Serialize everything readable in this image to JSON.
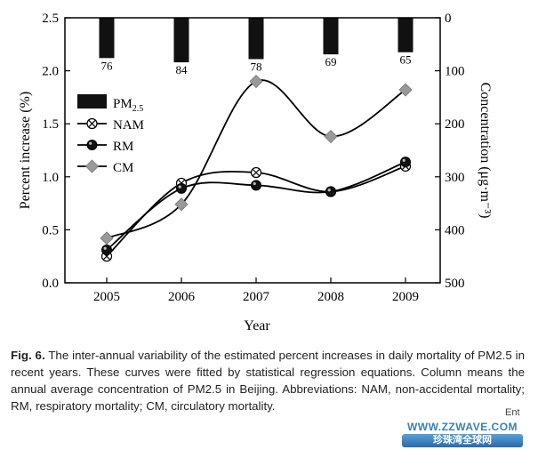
{
  "chart_data": {
    "type": "bar+line",
    "xlabel": "Year",
    "ylabel_left": "Percent increase (%)",
    "ylabel_right": "Concentration (μg·m⁻³)",
    "categories": [
      "2005",
      "2006",
      "2007",
      "2008",
      "2009"
    ],
    "ylim_left": [
      0.0,
      2.5
    ],
    "yticks_left": [
      "0.0",
      "0.5",
      "1.0",
      "1.5",
      "2.0",
      "2.5"
    ],
    "ylim_right": [
      500,
      0
    ],
    "yticks_right": [
      "0",
      "100",
      "200",
      "300",
      "400",
      "500"
    ],
    "bars": {
      "name": "PM2.5",
      "axis": "right",
      "categories": [
        "2005",
        "2006",
        "2007",
        "2008",
        "2009"
      ],
      "values": [
        76,
        84,
        78,
        69,
        65
      ],
      "labels": [
        "76",
        "84",
        "78",
        "69",
        "65"
      ]
    },
    "series": [
      {
        "name": "NAM",
        "marker": "crossed-circle",
        "values": [
          0.25,
          0.94,
          1.04,
          0.86,
          1.1
        ]
      },
      {
        "name": "RM",
        "marker": "filled-circle",
        "values": [
          0.31,
          0.89,
          0.92,
          0.86,
          1.14
        ]
      },
      {
        "name": "CM",
        "marker": "diamond",
        "values": [
          0.42,
          0.74,
          1.9,
          1.38,
          1.82
        ]
      }
    ],
    "legend": {
      "position": "left-middle",
      "items": [
        {
          "label": "PM",
          "sub": "2.5",
          "symbol": "bar"
        },
        {
          "label": "NAM",
          "symbol": "crossed-circle"
        },
        {
          "label": "RM",
          "symbol": "filled-circle"
        },
        {
          "label": "CM",
          "symbol": "diamond"
        }
      ]
    },
    "grid": false
  },
  "caption": {
    "fig": "Fig. 6.",
    "text": "The inter-annual variability of the estimated percent increases in daily mortality of PM2.5 in recent years. These curves were fitted by statistical regression equations. Column means the annual average concentration of PM2.5 in Beijing. Abbreviations: NAM, non-accidental mortality; RM, respiratory mortality; CM, circulatory mortality."
  },
  "watermark": {
    "line1": "WWW.ZZWAVE.COM",
    "line2": "珍珠湾全球网",
    "ent": "Ent"
  }
}
